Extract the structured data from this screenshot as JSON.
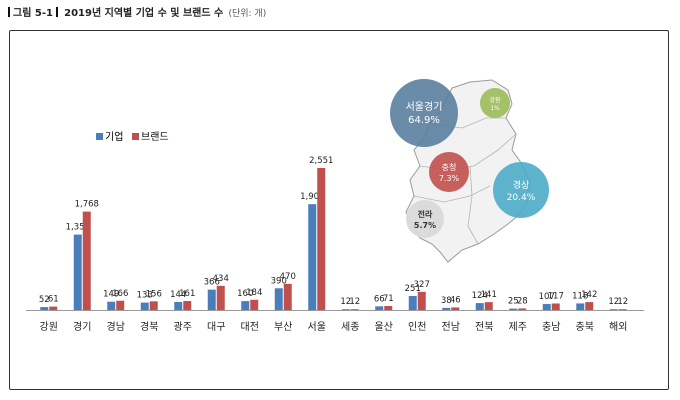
{
  "figure": {
    "label": "그림 5-1",
    "title": "2019년 지역별 기업 수 및 브랜드 수",
    "unit": "(단위: 개)"
  },
  "chart_data": {
    "type": "bar",
    "categories": [
      "강원",
      "경기",
      "경남",
      "경북",
      "광주",
      "대구",
      "대전",
      "부산",
      "서울",
      "세종",
      "울산",
      "인천",
      "전남",
      "전북",
      "제주",
      "충남",
      "충북",
      "해외"
    ],
    "series": [
      {
        "name": "기업",
        "color": "#4a7ebb",
        "values": [
          52,
          1355,
          149,
          133,
          144,
          366,
          160,
          390,
          1901,
          12,
          66,
          251,
          38,
          124,
          25,
          107,
          118,
          12
        ],
        "labels": [
          "52",
          "1,355",
          "149",
          "133",
          "144",
          "366",
          "160",
          "390",
          "1,901",
          "12",
          "66",
          "251",
          "38",
          "124",
          "25",
          "107",
          "118",
          "12"
        ]
      },
      {
        "name": "브랜드",
        "color": "#c0504d",
        "values": [
          61,
          1768,
          166,
          156,
          161,
          434,
          184,
          470,
          2551,
          12,
          71,
          327,
          46,
          141,
          28,
          117,
          142,
          12
        ],
        "labels": [
          "61",
          "1,768",
          "166",
          "156",
          "161",
          "434",
          "184",
          "470",
          "2,551",
          "12",
          "71",
          "327",
          "46",
          "141",
          "28",
          "117",
          "142",
          "12"
        ]
      }
    ],
    "ylim": [
      0,
      2800
    ],
    "grid": false,
    "legend": "upper-left"
  },
  "map_bubbles": [
    {
      "label": "서울경기",
      "value": "64.9%",
      "color": "#5b7f9e"
    },
    {
      "label": "강원",
      "value": "1%",
      "color": "#9bbb59"
    },
    {
      "label": "충청",
      "value": "7.3%",
      "color": "#c0504d"
    },
    {
      "label": "경상",
      "value": "20.4%",
      "color": "#4bacc6"
    },
    {
      "label": "전라",
      "value": "5.7%",
      "color": "#d9d9d9"
    }
  ]
}
